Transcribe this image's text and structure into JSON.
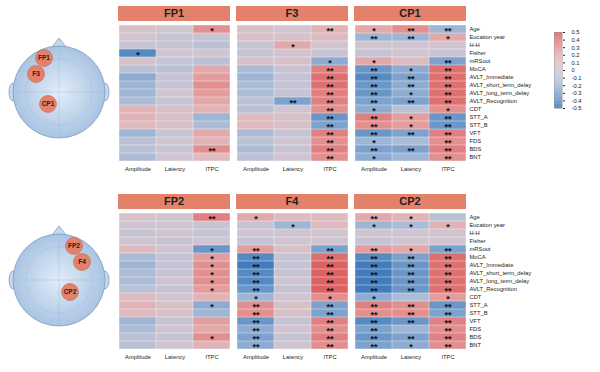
{
  "chart_data": {
    "type": "heatmap",
    "rows": [
      "Age",
      "Eucation year",
      "H-H",
      "Fisher",
      "mRSout",
      "MoCA",
      "AVLT_Immediate",
      "AVLT_short_term_delay",
      "AVLT_long_term_delay",
      "AVLT_Recognition",
      "CDT",
      "STT_A",
      "STT_B",
      "VFT",
      "FDS",
      "BDS",
      "BNT"
    ],
    "columns": [
      "Amplitude",
      "Latency",
      "ITPC"
    ],
    "colorbar": {
      "range": [
        -0.5,
        0.5
      ],
      "ticks": [
        0.5,
        0.4,
        0.3,
        0.2,
        0.1,
        0,
        -0.1,
        -0.2,
        -0.3,
        -0.4,
        -0.5
      ]
    },
    "panels": [
      {
        "title": "FP1",
        "values": [
          [
            0.05,
            0,
            0.3
          ],
          [
            0,
            -0.05,
            -0.05
          ],
          [
            -0.05,
            -0.05,
            -0.1
          ],
          [
            -0.4,
            0,
            0
          ],
          [
            0.05,
            -0.05,
            -0.1
          ],
          [
            -0.1,
            -0.1,
            0.2
          ],
          [
            -0.25,
            -0.05,
            0.25
          ],
          [
            -0.2,
            -0.05,
            0.3
          ],
          [
            -0.2,
            0,
            0.25
          ],
          [
            -0.15,
            -0.05,
            0.2
          ],
          [
            0.15,
            0.05,
            0.15
          ],
          [
            0.15,
            0.05,
            -0.2
          ],
          [
            0.1,
            0.05,
            -0.15
          ],
          [
            -0.2,
            -0.05,
            0.2
          ],
          [
            -0.1,
            0,
            0.15
          ],
          [
            -0.1,
            -0.05,
            0.3
          ],
          [
            -0.15,
            0,
            0.1
          ]
        ],
        "annotations": [
          [
            null,
            null,
            "*"
          ],
          [
            null,
            null,
            null
          ],
          [
            null,
            null,
            null
          ],
          [
            "*",
            null,
            null
          ],
          [
            null,
            null,
            null
          ],
          [
            null,
            null,
            null
          ],
          [
            null,
            null,
            null
          ],
          [
            null,
            null,
            null
          ],
          [
            null,
            null,
            null
          ],
          [
            null,
            null,
            null
          ],
          [
            null,
            null,
            null
          ],
          [
            null,
            null,
            null
          ],
          [
            null,
            null,
            null
          ],
          [
            null,
            null,
            null
          ],
          [
            null,
            null,
            null
          ],
          [
            null,
            null,
            "**"
          ],
          [
            null,
            null,
            null
          ]
        ]
      },
      {
        "title": "F3",
        "values": [
          [
            0.05,
            0,
            0.15
          ],
          [
            0.05,
            0.05,
            0.1
          ],
          [
            -0.05,
            0.2,
            0
          ],
          [
            -0.05,
            0,
            -0.05
          ],
          [
            0.05,
            0.05,
            -0.25
          ],
          [
            -0.15,
            -0.05,
            0.35
          ],
          [
            -0.2,
            -0.05,
            0.4
          ],
          [
            -0.15,
            -0.05,
            0.4
          ],
          [
            -0.15,
            -0.05,
            0.35
          ],
          [
            -0.1,
            -0.3,
            0.35
          ],
          [
            -0.1,
            0,
            0.3
          ],
          [
            0.1,
            0.05,
            -0.35
          ],
          [
            0.1,
            0.05,
            -0.3
          ],
          [
            -0.15,
            -0.05,
            0.35
          ],
          [
            -0.1,
            0,
            0.3
          ],
          [
            -0.15,
            -0.05,
            0.35
          ],
          [
            -0.1,
            0,
            0.3
          ]
        ],
        "annotations": [
          [
            null,
            null,
            "**"
          ],
          [
            null,
            null,
            null
          ],
          [
            null,
            "*",
            null
          ],
          [
            null,
            null,
            null
          ],
          [
            null,
            null,
            "*"
          ],
          [
            null,
            null,
            "**"
          ],
          [
            null,
            null,
            "**"
          ],
          [
            null,
            null,
            "**"
          ],
          [
            null,
            null,
            "**"
          ],
          [
            null,
            "**",
            "**"
          ],
          [
            null,
            null,
            "**"
          ],
          [
            null,
            null,
            "**"
          ],
          [
            null,
            null,
            "**"
          ],
          [
            null,
            null,
            "**"
          ],
          [
            null,
            null,
            "**"
          ],
          [
            null,
            null,
            "**"
          ],
          [
            null,
            null,
            "**"
          ]
        ]
      },
      {
        "title": "CP1",
        "values": [
          [
            0.2,
            0.3,
            -0.2
          ],
          [
            -0.2,
            -0.2,
            0.2
          ],
          [
            0,
            0,
            0
          ],
          [
            -0.05,
            0,
            -0.05
          ],
          [
            0.2,
            0.1,
            -0.3
          ],
          [
            -0.35,
            -0.25,
            0.4
          ],
          [
            -0.4,
            -0.3,
            0.4
          ],
          [
            -0.35,
            -0.25,
            0.4
          ],
          [
            -0.35,
            -0.25,
            0.4
          ],
          [
            -0.3,
            -0.3,
            0.4
          ],
          [
            -0.25,
            -0.1,
            0.3
          ],
          [
            0.35,
            0.25,
            -0.35
          ],
          [
            0.3,
            0.25,
            -0.35
          ],
          [
            -0.35,
            -0.3,
            0.35
          ],
          [
            -0.2,
            -0.15,
            0.3
          ],
          [
            -0.3,
            -0.3,
            0.35
          ],
          [
            -0.25,
            -0.2,
            0.3
          ]
        ],
        "annotations": [
          [
            "*",
            "**",
            "**"
          ],
          [
            "**",
            "**",
            "*"
          ],
          [
            null,
            null,
            null
          ],
          [
            null,
            null,
            null
          ],
          [
            "*",
            null,
            "**"
          ],
          [
            "**",
            "*",
            "**"
          ],
          [
            "**",
            "**",
            "**"
          ],
          [
            "**",
            "**",
            "**"
          ],
          [
            "**",
            "*",
            "**"
          ],
          [
            "**",
            "**",
            "**"
          ],
          [
            "*",
            null,
            "*"
          ],
          [
            "**",
            "*",
            "**"
          ],
          [
            "**",
            "*",
            "**"
          ],
          [
            "**",
            "**",
            "**"
          ],
          [
            "*",
            null,
            "**"
          ],
          [
            "**",
            "**",
            "**"
          ],
          [
            "*",
            null,
            "**"
          ]
        ]
      },
      {
        "title": "FP2",
        "values": [
          [
            0.05,
            0,
            0.35
          ],
          [
            0,
            0,
            -0.05
          ],
          [
            -0.05,
            0,
            -0.05
          ],
          [
            0,
            -0.05,
            0
          ],
          [
            0.1,
            0,
            -0.35
          ],
          [
            -0.15,
            -0.05,
            0.25
          ],
          [
            -0.2,
            -0.05,
            0.3
          ],
          [
            -0.15,
            -0.05,
            0.3
          ],
          [
            -0.15,
            0,
            0.3
          ],
          [
            -0.1,
            -0.05,
            0.25
          ],
          [
            0.1,
            0,
            0.15
          ],
          [
            0.15,
            0.05,
            -0.25
          ],
          [
            0.1,
            0.05,
            -0.2
          ],
          [
            -0.2,
            -0.05,
            0.25
          ],
          [
            -0.15,
            0,
            0.2
          ],
          [
            -0.1,
            -0.05,
            0.3
          ],
          [
            -0.1,
            0,
            0.15
          ]
        ],
        "annotations": [
          [
            null,
            null,
            "**"
          ],
          [
            null,
            null,
            null
          ],
          [
            null,
            null,
            null
          ],
          [
            null,
            null,
            null
          ],
          [
            null,
            null,
            "*"
          ],
          [
            null,
            null,
            "*"
          ],
          [
            null,
            null,
            "*"
          ],
          [
            null,
            null,
            "*"
          ],
          [
            null,
            null,
            "*"
          ],
          [
            null,
            null,
            "*"
          ],
          [
            null,
            null,
            null
          ],
          [
            null,
            null,
            "*"
          ],
          [
            null,
            null,
            null
          ],
          [
            null,
            null,
            null
          ],
          [
            null,
            null,
            null
          ],
          [
            null,
            null,
            "*"
          ],
          [
            null,
            null,
            null
          ]
        ]
      },
      {
        "title": "F4",
        "values": [
          [
            0.2,
            0.1,
            0.1
          ],
          [
            -0.05,
            -0.2,
            0.1
          ],
          [
            0,
            0,
            0
          ],
          [
            -0.05,
            0,
            0
          ],
          [
            0.25,
            0.05,
            -0.3
          ],
          [
            -0.4,
            -0.05,
            0.4
          ],
          [
            -0.45,
            -0.05,
            0.45
          ],
          [
            -0.4,
            -0.05,
            0.45
          ],
          [
            -0.4,
            0,
            0.45
          ],
          [
            -0.35,
            -0.05,
            0.45
          ],
          [
            -0.2,
            0,
            0.3
          ],
          [
            0.3,
            0.05,
            -0.3
          ],
          [
            0.3,
            0.05,
            -0.3
          ],
          [
            -0.35,
            -0.05,
            0.35
          ],
          [
            -0.25,
            0,
            0.3
          ],
          [
            -0.3,
            -0.05,
            0.35
          ],
          [
            -0.25,
            0,
            0.3
          ]
        ],
        "annotations": [
          [
            "*",
            null,
            null
          ],
          [
            null,
            "*",
            null
          ],
          [
            null,
            null,
            null
          ],
          [
            null,
            null,
            null
          ],
          [
            "**",
            null,
            "**"
          ],
          [
            "**",
            null,
            "**"
          ],
          [
            "**",
            null,
            "**"
          ],
          [
            "**",
            null,
            "**"
          ],
          [
            "**",
            null,
            "**"
          ],
          [
            "**",
            null,
            "**"
          ],
          [
            "*",
            null,
            "*"
          ],
          [
            "**",
            null,
            "**"
          ],
          [
            "**",
            null,
            "**"
          ],
          [
            "**",
            null,
            "**"
          ],
          [
            "**",
            null,
            "**"
          ],
          [
            "**",
            null,
            "**"
          ],
          [
            "**",
            null,
            "**"
          ]
        ]
      },
      {
        "title": "CP2",
        "values": [
          [
            0.2,
            0.15,
            -0.1
          ],
          [
            -0.2,
            -0.15,
            0.15
          ],
          [
            0,
            0,
            0
          ],
          [
            -0.05,
            0,
            0
          ],
          [
            0.25,
            0.2,
            -0.3
          ],
          [
            -0.4,
            -0.3,
            0.4
          ],
          [
            -0.45,
            -0.35,
            0.4
          ],
          [
            -0.45,
            -0.35,
            0.4
          ],
          [
            -0.45,
            -0.35,
            0.4
          ],
          [
            -0.45,
            -0.35,
            0.4
          ],
          [
            -0.25,
            -0.15,
            0.25
          ],
          [
            0.35,
            0.3,
            -0.35
          ],
          [
            0.3,
            0.3,
            -0.3
          ],
          [
            -0.4,
            -0.35,
            0.35
          ],
          [
            -0.3,
            -0.2,
            0.3
          ],
          [
            -0.35,
            -0.3,
            0.35
          ],
          [
            -0.3,
            -0.25,
            0.3
          ]
        ],
        "annotations": [
          [
            "**",
            "*",
            null
          ],
          [
            "*",
            "*",
            "*"
          ],
          [
            null,
            null,
            null
          ],
          [
            null,
            null,
            null
          ],
          [
            "**",
            "*",
            "**"
          ],
          [
            "**",
            "**",
            "**"
          ],
          [
            "**",
            "**",
            "**"
          ],
          [
            "**",
            "**",
            "**"
          ],
          [
            "**",
            "**",
            "**"
          ],
          [
            "**",
            "**",
            "**"
          ],
          [
            "*",
            null,
            "*"
          ],
          [
            "**",
            "**",
            "**"
          ],
          [
            "**",
            "**",
            "**"
          ],
          [
            "**",
            "**",
            "**"
          ],
          [
            "**",
            null,
            "**"
          ],
          [
            "**",
            "**",
            "**"
          ],
          [
            "**",
            "*",
            "**"
          ]
        ]
      }
    ]
  }
}
